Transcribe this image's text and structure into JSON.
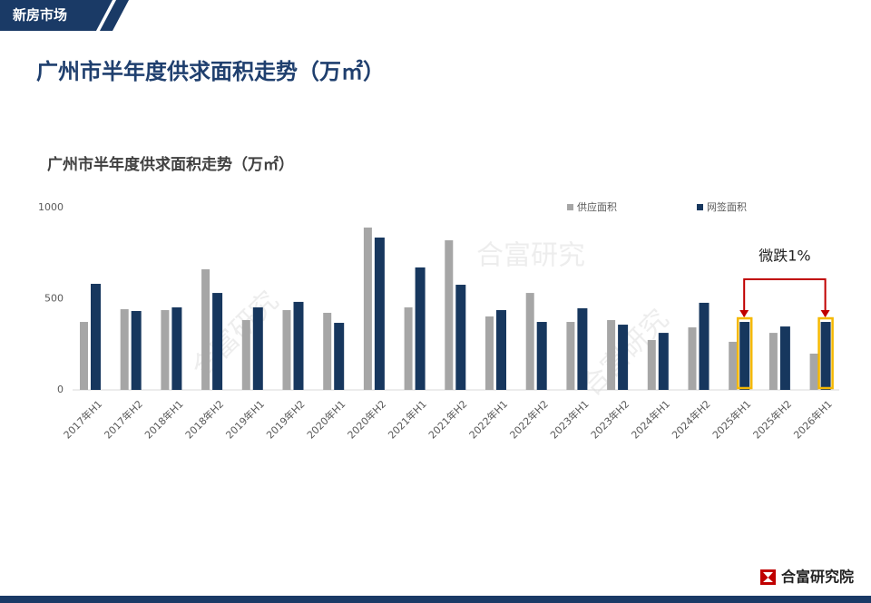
{
  "header": {
    "section_tab": "新房市场",
    "page_title": "广州市半年度供求面积走势（万㎡）"
  },
  "chart_data": {
    "type": "bar",
    "title": "广州市半年度供求面积走势（万㎡）",
    "categories": [
      "2017年H1",
      "2017年H2",
      "2018年H1",
      "2018年H2",
      "2019年H1",
      "2019年H2",
      "2020年H1",
      "2020年H2",
      "2021年H1",
      "2021年H2",
      "2022年H1",
      "2022年H2",
      "2023年H1",
      "2023年H2",
      "2024年H1",
      "2024年H2",
      "2025年H1",
      "2025年H2",
      "2026年H1"
    ],
    "series": [
      {
        "name": "供应面积",
        "color": "#a6a6a6",
        "values": [
          373,
          443,
          438,
          662,
          383,
          438,
          423,
          891,
          453,
          821,
          403,
          532,
          373,
          383,
          274,
          343,
          264,
          313,
          199
        ]
      },
      {
        "name": "网签面积",
        "color": "#17375e",
        "values": [
          582,
          433,
          453,
          532,
          453,
          483,
          368,
          836,
          672,
          577,
          438,
          373,
          448,
          358,
          313,
          478,
          373,
          348,
          373
        ]
      }
    ],
    "ylim": [
      0,
      1000
    ],
    "yticks": [
      0,
      500,
      1000
    ],
    "grid": false,
    "legend": "top-right",
    "annotation": {
      "text": "微跌1%",
      "between": [
        "2025年H1",
        "2026年H1"
      ],
      "color": "#c00000",
      "highlight_color": "#f5b800"
    },
    "watermark": "合富研究"
  },
  "footer": {
    "brand": "合富研究院"
  }
}
